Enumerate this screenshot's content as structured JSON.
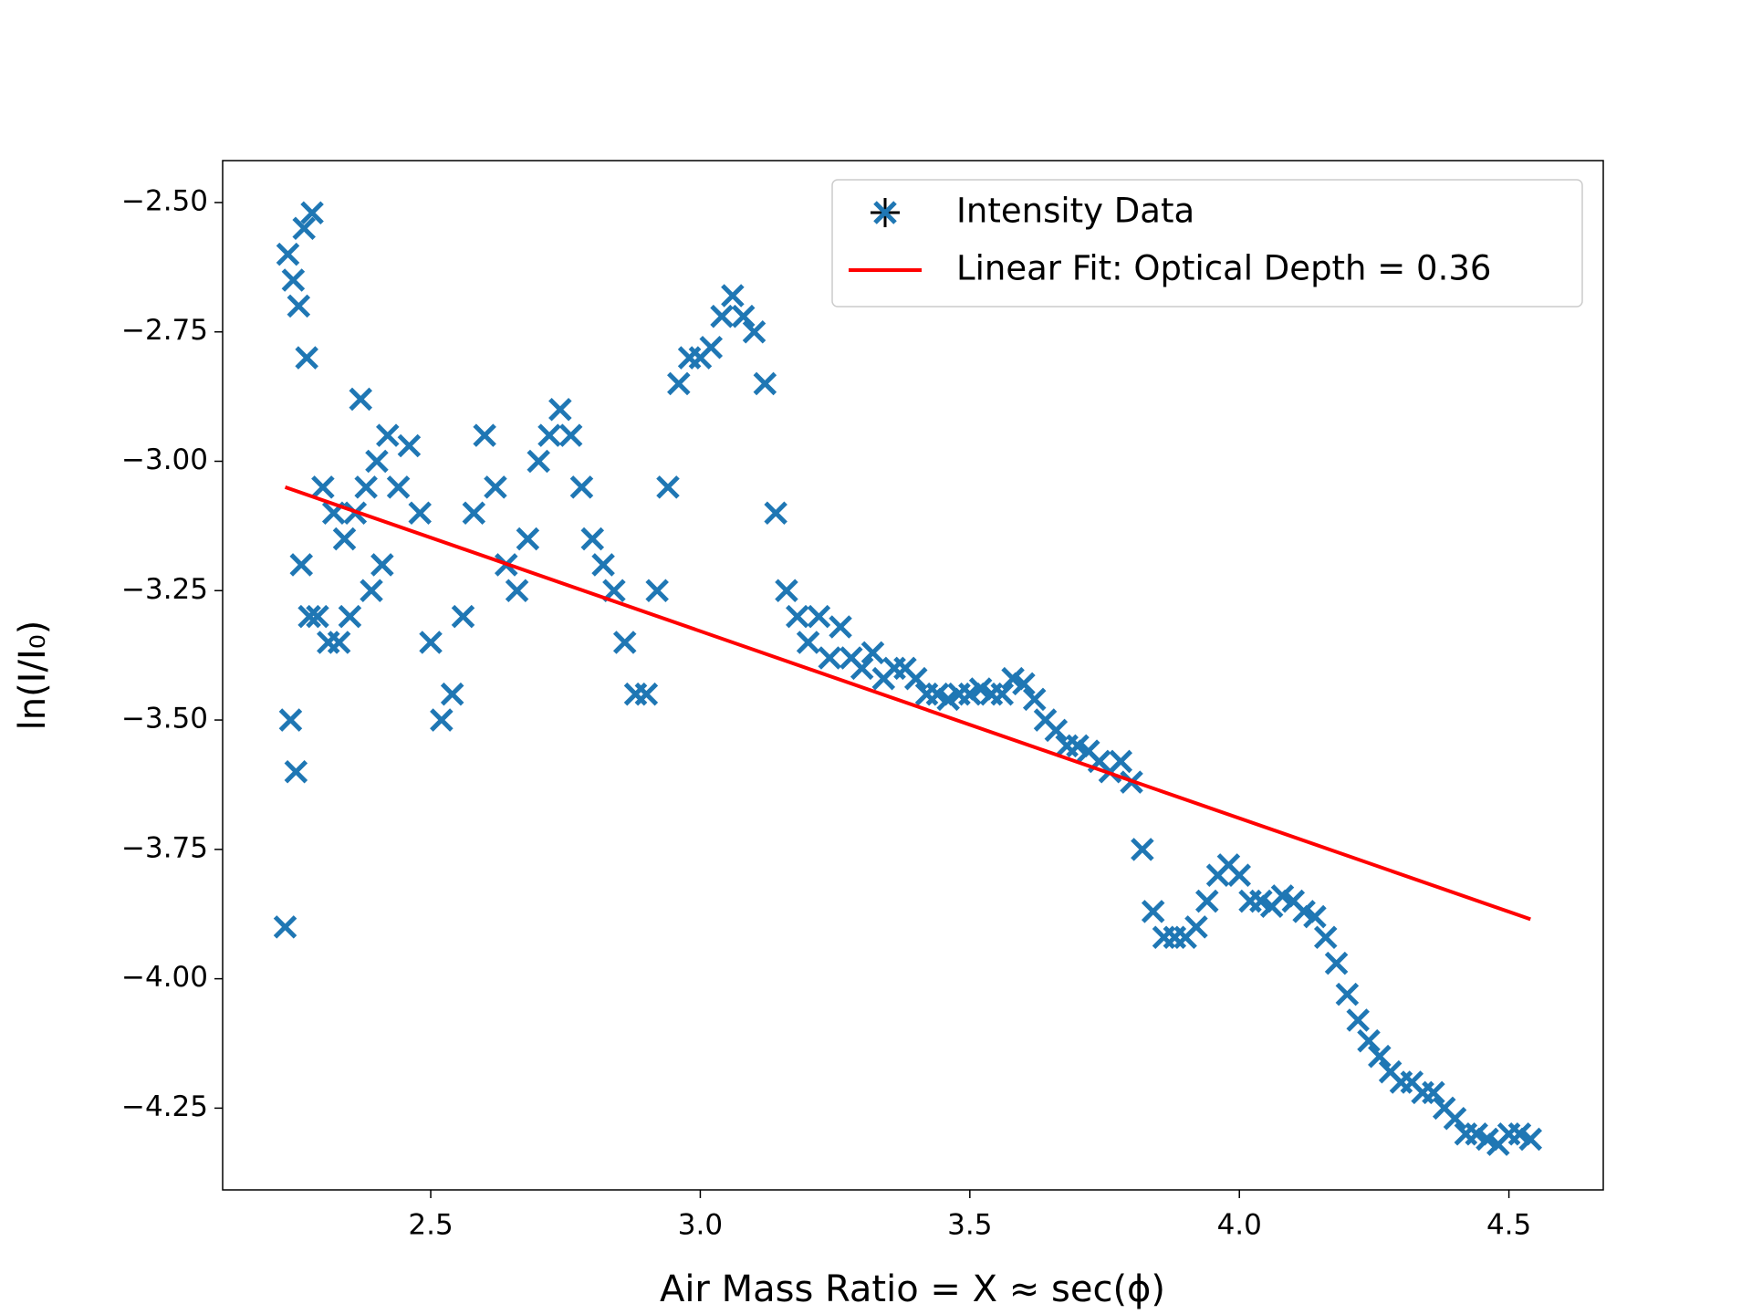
{
  "chart_data": {
    "type": "scatter",
    "xlabel": "Air Mass Ratio = X ≈ sec(ϕ)",
    "ylabel": "ln(I/I₀)",
    "xlim": [
      2.114,
      4.675
    ],
    "ylim": [
      -4.408,
      -2.419
    ],
    "xticks": [
      2.5,
      {
        "value": 3,
        "label": "3.0"
      },
      3.5,
      {
        "value": 4,
        "label": "4.0"
      },
      4.5
    ],
    "yticks": [
      {
        "value": -2.5,
        "label": "−2.50"
      },
      {
        "value": -2.75,
        "label": "−2.75"
      },
      {
        "value": -3,
        "label": "−3.00"
      },
      {
        "value": -3.25,
        "label": "−3.25"
      },
      {
        "value": -3.5,
        "label": "−3.50"
      },
      {
        "value": -3.75,
        "label": "−3.75"
      },
      {
        "value": -4,
        "label": "−4.00"
      },
      {
        "value": -4.25,
        "label": "−4.25"
      }
    ],
    "legend": "upper right",
    "series": [
      {
        "name": "Intensity Data",
        "type": "scatter",
        "color": "#1f77b4",
        "x": [
          2.23,
          2.235,
          2.24,
          2.245,
          2.25,
          2.255,
          2.26,
          2.265,
          2.27,
          2.275,
          2.28,
          2.29,
          2.3,
          2.31,
          2.32,
          2.33,
          2.34,
          2.35,
          2.36,
          2.37,
          2.38,
          2.39,
          2.4,
          2.41,
          2.42,
          2.44,
          2.46,
          2.48,
          2.5,
          2.52,
          2.54,
          2.56,
          2.58,
          2.6,
          2.62,
          2.64,
          2.66,
          2.68,
          2.7,
          2.72,
          2.74,
          2.76,
          2.78,
          2.8,
          2.82,
          2.84,
          2.86,
          2.88,
          2.9,
          2.92,
          2.94,
          2.96,
          2.98,
          3.0,
          3.02,
          3.04,
          3.06,
          3.08,
          3.1,
          3.12,
          3.14,
          3.16,
          3.18,
          3.2,
          3.22,
          3.24,
          3.26,
          3.28,
          3.3,
          3.32,
          3.34,
          3.36,
          3.38,
          3.4,
          3.42,
          3.44,
          3.46,
          3.48,
          3.5,
          3.52,
          3.54,
          3.56,
          3.58,
          3.6,
          3.62,
          3.64,
          3.66,
          3.68,
          3.7,
          3.72,
          3.74,
          3.76,
          3.78,
          3.8,
          3.82,
          3.84,
          3.86,
          3.88,
          3.9,
          3.92,
          3.94,
          3.96,
          3.98,
          4.0,
          4.02,
          4.04,
          4.06,
          4.08,
          4.1,
          4.12,
          4.14,
          4.16,
          4.18,
          4.2,
          4.22,
          4.24,
          4.26,
          4.28,
          4.3,
          4.32,
          4.34,
          4.36,
          4.38,
          4.4,
          4.42,
          4.44,
          4.46,
          4.48,
          4.5,
          4.52,
          4.54
        ],
        "values": [
          -3.9,
          -2.6,
          -3.5,
          -2.65,
          -3.6,
          -2.7,
          -3.2,
          -2.55,
          -2.8,
          -3.3,
          -2.52,
          -3.3,
          -3.05,
          -3.35,
          -3.1,
          -3.35,
          -3.15,
          -3.3,
          -3.1,
          -2.88,
          -3.05,
          -3.25,
          -3.0,
          -3.2,
          -2.95,
          -3.05,
          -2.97,
          -3.1,
          -3.35,
          -3.5,
          -3.45,
          -3.3,
          -3.1,
          -2.95,
          -3.05,
          -3.2,
          -3.25,
          -3.15,
          -3.0,
          -2.95,
          -2.9,
          -2.95,
          -3.05,
          -3.15,
          -3.2,
          -3.25,
          -3.35,
          -3.45,
          -3.45,
          -3.25,
          -3.05,
          -2.85,
          -2.8,
          -2.8,
          -2.78,
          -2.72,
          -2.68,
          -2.72,
          -2.75,
          -2.85,
          -3.1,
          -3.25,
          -3.3,
          -3.35,
          -3.3,
          -3.38,
          -3.32,
          -3.38,
          -3.4,
          -3.37,
          -3.42,
          -3.4,
          -3.4,
          -3.42,
          -3.45,
          -3.45,
          -3.46,
          -3.45,
          -3.45,
          -3.44,
          -3.45,
          -3.45,
          -3.42,
          -3.43,
          -3.46,
          -3.5,
          -3.52,
          -3.55,
          -3.55,
          -3.56,
          -3.58,
          -3.6,
          -3.58,
          -3.62,
          -3.75,
          -3.87,
          -3.92,
          -3.92,
          -3.92,
          -3.9,
          -3.85,
          -3.8,
          -3.78,
          -3.8,
          -3.85,
          -3.85,
          -3.86,
          -3.84,
          -3.85,
          -3.87,
          -3.88,
          -3.92,
          -3.97,
          -4.03,
          -4.08,
          -4.12,
          -4.15,
          -4.18,
          -4.2,
          -4.2,
          -4.22,
          -4.22,
          -4.25,
          -4.27,
          -4.3,
          -4.3,
          -4.31,
          -4.32,
          -4.3,
          -4.3,
          -4.31
        ]
      },
      {
        "name": "Linear Fit: Optical Depth = 0.36",
        "type": "line",
        "color": "#ff0000",
        "x": [
          2.23,
          4.54
        ],
        "values": [
          -3.05,
          -3.885
        ]
      }
    ]
  }
}
